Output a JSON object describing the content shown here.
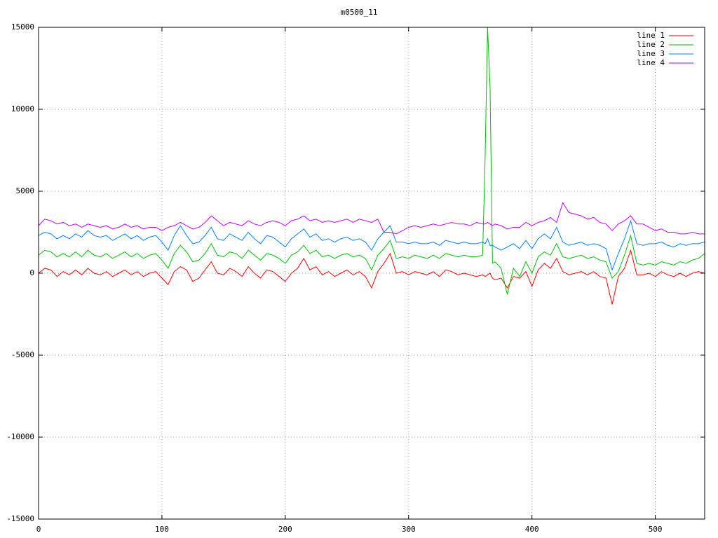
{
  "chart_data": {
    "type": "line",
    "title": "m0500_11",
    "x": [
      0,
      5,
      10,
      15,
      20,
      25,
      30,
      35,
      40,
      45,
      50,
      55,
      60,
      65,
      70,
      75,
      80,
      85,
      90,
      95,
      100,
      105,
      110,
      115,
      120,
      125,
      130,
      135,
      140,
      145,
      150,
      155,
      160,
      165,
      170,
      175,
      180,
      185,
      190,
      195,
      200,
      205,
      210,
      215,
      220,
      225,
      230,
      235,
      240,
      245,
      250,
      255,
      260,
      265,
      270,
      275,
      280,
      285,
      290,
      295,
      300,
      305,
      310,
      315,
      320,
      325,
      330,
      335,
      340,
      345,
      350,
      355,
      360,
      362,
      364,
      366,
      368,
      370,
      375,
      380,
      385,
      390,
      395,
      400,
      405,
      410,
      415,
      420,
      425,
      430,
      435,
      440,
      445,
      450,
      455,
      460,
      465,
      470,
      475,
      480,
      485,
      490,
      495,
      500,
      505,
      510,
      515,
      520,
      525,
      530,
      535,
      540
    ],
    "series": [
      {
        "name": "line 1",
        "color": "#ff0000",
        "values": [
          0,
          300,
          200,
          -200,
          100,
          -100,
          200,
          -100,
          300,
          0,
          -100,
          100,
          -200,
          0,
          200,
          -100,
          100,
          -200,
          0,
          100,
          -300,
          -700,
          100,
          400,
          200,
          -500,
          -300,
          200,
          700,
          0,
          -100,
          300,
          100,
          -200,
          400,
          0,
          -300,
          200,
          100,
          -200,
          -500,
          0,
          300,
          900,
          200,
          400,
          -100,
          100,
          -200,
          0,
          200,
          -100,
          100,
          -200,
          -900,
          100,
          600,
          1200,
          0,
          100,
          -100,
          100,
          0,
          -100,
          100,
          -200,
          200,
          100,
          -100,
          0,
          -100,
          -200,
          -100,
          -200,
          -100,
          0,
          -300,
          -400,
          -300,
          -900,
          -200,
          -300,
          100,
          -800,
          200,
          600,
          300,
          900,
          100,
          -100,
          0,
          100,
          -100,
          100,
          -200,
          -300,
          -1900,
          -200,
          300,
          1400,
          -100,
          -100,
          0,
          -200,
          100,
          -100,
          -200,
          0,
          -200,
          0,
          100,
          0
        ]
      },
      {
        "name": "line 2",
        "color": "#00c000",
        "values": [
          1100,
          1400,
          1300,
          1000,
          1200,
          1000,
          1300,
          1000,
          1400,
          1100,
          1000,
          1200,
          900,
          1100,
          1300,
          1000,
          1200,
          900,
          1100,
          1200,
          800,
          300,
          1200,
          1700,
          1300,
          700,
          800,
          1200,
          1800,
          1100,
          1000,
          1300,
          1200,
          900,
          1400,
          1100,
          800,
          1200,
          1100,
          900,
          600,
          1100,
          1300,
          1700,
          1200,
          1400,
          1000,
          1100,
          900,
          1100,
          1200,
          1000,
          1100,
          900,
          200,
          1100,
          1500,
          2000,
          900,
          1000,
          900,
          1100,
          1000,
          900,
          1100,
          900,
          1200,
          1100,
          1000,
          1100,
          1000,
          1000,
          1100,
          7000,
          15000,
          11400,
          600,
          700,
          300,
          -1300,
          300,
          -200,
          700,
          0,
          1000,
          1300,
          1100,
          1800,
          1000,
          900,
          1000,
          1100,
          900,
          1000,
          800,
          700,
          -300,
          100,
          1100,
          2300,
          600,
          500,
          600,
          500,
          700,
          600,
          500,
          700,
          600,
          800,
          900,
          1200
        ]
      },
      {
        "name": "line 3",
        "color": "#0080ff",
        "values": [
          2300,
          2500,
          2400,
          2100,
          2300,
          2100,
          2400,
          2200,
          2600,
          2300,
          2200,
          2300,
          2000,
          2200,
          2400,
          2100,
          2300,
          2000,
          2200,
          2300,
          1900,
          1400,
          2300,
          2900,
          2300,
          1800,
          1900,
          2300,
          2800,
          2100,
          2000,
          2400,
          2200,
          2000,
          2500,
          2100,
          1800,
          2300,
          2200,
          1900,
          1600,
          2100,
          2400,
          2700,
          2200,
          2400,
          2000,
          2100,
          1900,
          2100,
          2200,
          2000,
          2100,
          1900,
          1400,
          2100,
          2500,
          2900,
          1900,
          1900,
          1800,
          1900,
          1800,
          1800,
          1900,
          1700,
          2000,
          1900,
          1800,
          1900,
          1800,
          1800,
          1900,
          1800,
          2100,
          1700,
          1700,
          1600,
          1400,
          1600,
          1800,
          1500,
          2000,
          1500,
          2100,
          2400,
          2100,
          2800,
          1900,
          1700,
          1800,
          1900,
          1700,
          1800,
          1700,
          1500,
          200,
          1200,
          2100,
          3200,
          1800,
          1700,
          1800,
          1800,
          1900,
          1700,
          1600,
          1800,
          1700,
          1800,
          1800,
          1900
        ]
      },
      {
        "name": "line 4",
        "color": "#c000ff",
        "values": [
          2900,
          3300,
          3200,
          3000,
          3100,
          2900,
          3000,
          2800,
          3000,
          2900,
          2800,
          2900,
          2700,
          2800,
          3000,
          2800,
          2900,
          2700,
          2800,
          2800,
          2600,
          2800,
          2900,
          3100,
          2900,
          2700,
          2800,
          3100,
          3500,
          3200,
          2900,
          3100,
          3000,
          2900,
          3200,
          3000,
          2900,
          3100,
          3200,
          3100,
          2900,
          3200,
          3300,
          3500,
          3200,
          3300,
          3100,
          3200,
          3100,
          3200,
          3300,
          3100,
          3300,
          3200,
          3100,
          3300,
          2500,
          2500,
          2400,
          2600,
          2800,
          2900,
          2800,
          2900,
          3000,
          2900,
          3000,
          3100,
          3000,
          3000,
          2900,
          3100,
          3000,
          3000,
          3100,
          3000,
          2900,
          3000,
          2900,
          2700,
          2800,
          2800,
          3100,
          2900,
          3100,
          3200,
          3400,
          3100,
          4300,
          3700,
          3600,
          3500,
          3300,
          3400,
          3100,
          3000,
          2600,
          3000,
          3200,
          3500,
          3000,
          3000,
          2800,
          2600,
          2700,
          2500,
          2500,
          2400,
          2400,
          2500,
          2400,
          2400
        ]
      }
    ],
    "xlim": [
      0,
      540
    ],
    "xticks": [
      0,
      100,
      200,
      300,
      400,
      500
    ],
    "ylim": [
      -15000,
      15000
    ],
    "yticks": [
      -15000,
      -10000,
      -5000,
      0,
      5000,
      10000,
      15000
    ],
    "grid": true,
    "legend": "top-right"
  }
}
